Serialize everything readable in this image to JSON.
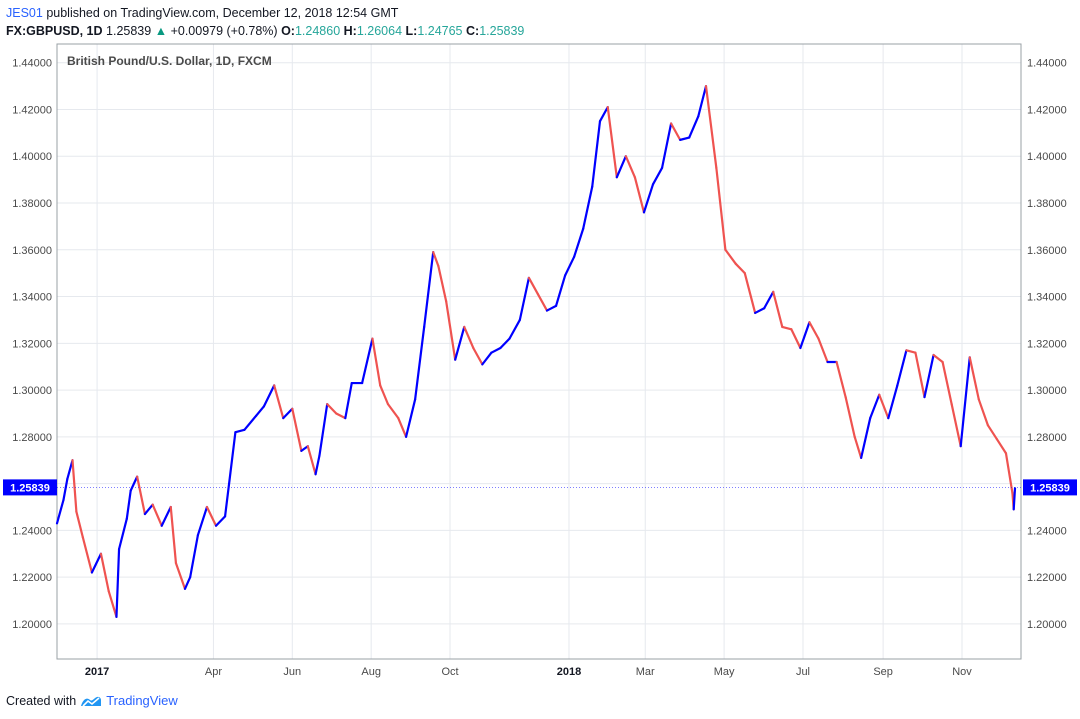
{
  "header": {
    "author": "JES01",
    "published_text": " published on TradingView.com, December 12, 2018 12:54 GMT",
    "symbol": "FX:GBPUSD, 1D",
    "last": "1.25839",
    "change_arrow": "▲",
    "change": "+0.00979 (+0.78%)",
    "o_label": "O:",
    "o_value": "1.24860",
    "h_label": "H:",
    "h_value": "1.26064",
    "l_label": "L:",
    "l_value": "1.24765",
    "c_label": "C:",
    "c_value": "1.25839"
  },
  "footer": {
    "created_with": "Created with",
    "brand": "TradingView",
    "logo_icon": "tradingview-logo-icon"
  },
  "chart_data": {
    "type": "line",
    "title": "British Pound/U.S. Dollar, 1D, FXCM",
    "xlabel": "",
    "ylabel": "",
    "ylim": [
      1.185,
      1.448
    ],
    "x_range": [
      "2016-12-01",
      "2018-12-12"
    ],
    "grid": true,
    "up_color": "#0000ff",
    "down_color": "#ef5350",
    "y_ticks": [
      "1.20000",
      "1.22000",
      "1.24000",
      "1.26000",
      "1.28000",
      "1.30000",
      "1.32000",
      "1.34000",
      "1.36000",
      "1.38000",
      "1.40000",
      "1.42000",
      "1.44000"
    ],
    "x_ticks": [
      {
        "label": "2017",
        "date": "2017-01-01",
        "bold": true
      },
      {
        "label": "Apr",
        "date": "2017-04-01",
        "bold": false
      },
      {
        "label": "Jun",
        "date": "2017-06-01",
        "bold": false
      },
      {
        "label": "Aug",
        "date": "2017-08-01",
        "bold": false
      },
      {
        "label": "Oct",
        "date": "2017-10-01",
        "bold": false
      },
      {
        "label": "2018",
        "date": "2018-01-01",
        "bold": true
      },
      {
        "label": "Mar",
        "date": "2018-03-01",
        "bold": false
      },
      {
        "label": "May",
        "date": "2018-05-01",
        "bold": false
      },
      {
        "label": "Jul",
        "date": "2018-07-01",
        "bold": false
      },
      {
        "label": "Sep",
        "date": "2018-09-01",
        "bold": false
      },
      {
        "label": "Nov",
        "date": "2018-11-01",
        "bold": false
      }
    ],
    "last_price": "1.25839",
    "last_price_value": 1.25839,
    "series": [
      {
        "points": [
          [
            "2016-12-01",
            1.243
          ],
          [
            "2016-12-06",
            1.253
          ],
          [
            "2016-12-09",
            1.262
          ],
          [
            "2016-12-13",
            1.27
          ],
          [
            "2016-12-16",
            1.248
          ],
          [
            "2016-12-21",
            1.237
          ],
          [
            "2016-12-28",
            1.222
          ],
          [
            "2017-01-04",
            1.23
          ],
          [
            "2017-01-10",
            1.214
          ],
          [
            "2017-01-16",
            1.203
          ],
          [
            "2017-01-18",
            1.232
          ],
          [
            "2017-01-24",
            1.245
          ],
          [
            "2017-01-27",
            1.257
          ],
          [
            "2017-02-01",
            1.263
          ],
          [
            "2017-02-07",
            1.247
          ],
          [
            "2017-02-13",
            1.251
          ],
          [
            "2017-02-20",
            1.242
          ],
          [
            "2017-02-27",
            1.25
          ],
          [
            "2017-03-03",
            1.226
          ],
          [
            "2017-03-10",
            1.215
          ],
          [
            "2017-03-14",
            1.22
          ],
          [
            "2017-03-20",
            1.238
          ],
          [
            "2017-03-27",
            1.25
          ],
          [
            "2017-04-03",
            1.242
          ],
          [
            "2017-04-10",
            1.246
          ],
          [
            "2017-04-18",
            1.282
          ],
          [
            "2017-04-25",
            1.283
          ],
          [
            "2017-05-04",
            1.289
          ],
          [
            "2017-05-10",
            1.293
          ],
          [
            "2017-05-18",
            1.302
          ],
          [
            "2017-05-25",
            1.288
          ],
          [
            "2017-06-01",
            1.292
          ],
          [
            "2017-06-08",
            1.274
          ],
          [
            "2017-06-13",
            1.276
          ],
          [
            "2017-06-19",
            1.264
          ],
          [
            "2017-06-22",
            1.272
          ],
          [
            "2017-06-28",
            1.294
          ],
          [
            "2017-07-05",
            1.29
          ],
          [
            "2017-07-12",
            1.288
          ],
          [
            "2017-07-17",
            1.303
          ],
          [
            "2017-07-25",
            1.303
          ],
          [
            "2017-08-02",
            1.322
          ],
          [
            "2017-08-08",
            1.302
          ],
          [
            "2017-08-14",
            1.294
          ],
          [
            "2017-08-22",
            1.288
          ],
          [
            "2017-08-28",
            1.28
          ],
          [
            "2017-09-04",
            1.296
          ],
          [
            "2017-09-11",
            1.327
          ],
          [
            "2017-09-18",
            1.359
          ],
          [
            "2017-09-22",
            1.353
          ],
          [
            "2017-09-28",
            1.338
          ],
          [
            "2017-10-05",
            1.313
          ],
          [
            "2017-10-12",
            1.327
          ],
          [
            "2017-10-19",
            1.318
          ],
          [
            "2017-10-26",
            1.311
          ],
          [
            "2017-11-02",
            1.316
          ],
          [
            "2017-11-09",
            1.318
          ],
          [
            "2017-11-16",
            1.322
          ],
          [
            "2017-11-24",
            1.33
          ],
          [
            "2017-12-01",
            1.348
          ],
          [
            "2017-12-08",
            1.341
          ],
          [
            "2017-12-15",
            1.334
          ],
          [
            "2017-12-22",
            1.336
          ],
          [
            "2017-12-29",
            1.349
          ],
          [
            "2018-01-05",
            1.357
          ],
          [
            "2018-01-12",
            1.369
          ],
          [
            "2018-01-19",
            1.387
          ],
          [
            "2018-01-25",
            1.415
          ],
          [
            "2018-01-31",
            1.421
          ],
          [
            "2018-02-07",
            1.391
          ],
          [
            "2018-02-14",
            1.4
          ],
          [
            "2018-02-21",
            1.391
          ],
          [
            "2018-02-28",
            1.376
          ],
          [
            "2018-03-07",
            1.388
          ],
          [
            "2018-03-14",
            1.395
          ],
          [
            "2018-03-21",
            1.414
          ],
          [
            "2018-03-28",
            1.407
          ],
          [
            "2018-04-04",
            1.408
          ],
          [
            "2018-04-11",
            1.417
          ],
          [
            "2018-04-17",
            1.43
          ],
          [
            "2018-04-25",
            1.395
          ],
          [
            "2018-05-02",
            1.36
          ],
          [
            "2018-05-10",
            1.354
          ],
          [
            "2018-05-17",
            1.35
          ],
          [
            "2018-05-25",
            1.333
          ],
          [
            "2018-06-01",
            1.335
          ],
          [
            "2018-06-08",
            1.342
          ],
          [
            "2018-06-15",
            1.327
          ],
          [
            "2018-06-22",
            1.326
          ],
          [
            "2018-06-29",
            1.318
          ],
          [
            "2018-07-06",
            1.329
          ],
          [
            "2018-07-13",
            1.322
          ],
          [
            "2018-07-20",
            1.312
          ],
          [
            "2018-07-27",
            1.312
          ],
          [
            "2018-08-03",
            1.297
          ],
          [
            "2018-08-10",
            1.28
          ],
          [
            "2018-08-15",
            1.271
          ],
          [
            "2018-08-22",
            1.288
          ],
          [
            "2018-08-29",
            1.298
          ],
          [
            "2018-09-05",
            1.288
          ],
          [
            "2018-09-12",
            1.302
          ],
          [
            "2018-09-19",
            1.317
          ],
          [
            "2018-09-26",
            1.316
          ],
          [
            "2018-10-03",
            1.297
          ],
          [
            "2018-10-10",
            1.315
          ],
          [
            "2018-10-17",
            1.312
          ],
          [
            "2018-10-24",
            1.294
          ],
          [
            "2018-10-31",
            1.276
          ],
          [
            "2018-11-07",
            1.314
          ],
          [
            "2018-11-14",
            1.296
          ],
          [
            "2018-11-21",
            1.285
          ],
          [
            "2018-11-28",
            1.279
          ],
          [
            "2018-12-05",
            1.273
          ],
          [
            "2018-12-10",
            1.256
          ],
          [
            "2018-12-11",
            1.249
          ],
          [
            "2018-12-12",
            1.258
          ]
        ]
      }
    ]
  }
}
